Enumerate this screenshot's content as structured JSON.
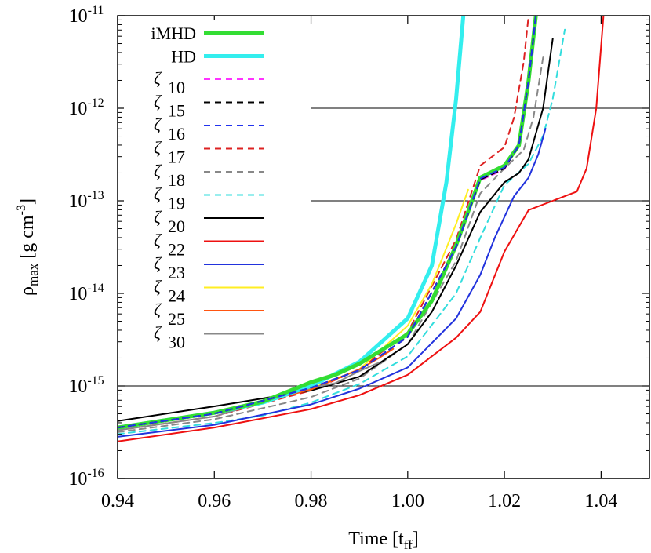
{
  "chart_data": {
    "type": "line",
    "xlabel": "Time [t",
    "xlabel_sub": "ff",
    "xlabel_end": "]",
    "ylabel_rho": "ρ",
    "ylabel_sub": "max",
    "ylabel_units": " [g cm",
    "ylabel_sup": "-3",
    "ylabel_end": "]",
    "xlim": [
      0.94,
      1.05
    ],
    "ylim_log10": [
      -16,
      -11
    ],
    "yscale": "log",
    "x_ticks": [
      {
        "value": 0.94,
        "label": "0.94"
      },
      {
        "value": 0.96,
        "label": "0.96"
      },
      {
        "value": 0.98,
        "label": "0.98"
      },
      {
        "value": 1.0,
        "label": "1.00"
      },
      {
        "value": 1.02,
        "label": "1.02"
      },
      {
        "value": 1.04,
        "label": "1.04"
      }
    ],
    "y_ticks": [
      {
        "exp": -16,
        "base": "10",
        "sup": "-16"
      },
      {
        "exp": -15,
        "base": "10",
        "sup": "-15"
      },
      {
        "exp": -14,
        "base": "10",
        "sup": "-14"
      },
      {
        "exp": -13,
        "base": "10",
        "sup": "-13"
      },
      {
        "exp": -12,
        "base": "10",
        "sup": "-12"
      },
      {
        "exp": -11,
        "base": "10",
        "sup": "-11"
      }
    ],
    "reference_lines": [
      {
        "y_log10": -15,
        "x_from": 0.94
      },
      {
        "y_log10": -13,
        "x_from": 0.98
      },
      {
        "y_log10": -12,
        "x_from": 0.98
      }
    ],
    "legend_position": "top-left",
    "series": [
      {
        "name": "iMHD",
        "color": "#33dd33",
        "width": 5,
        "dash": "",
        "points": [
          [
            0.94,
            -15.45
          ],
          [
            0.96,
            -15.29
          ],
          [
            0.97,
            -15.17
          ],
          [
            0.98,
            -14.96
          ],
          [
            0.985,
            -14.88
          ],
          [
            0.99,
            -14.76
          ],
          [
            1.0,
            -14.44
          ],
          [
            1.005,
            -14.08
          ],
          [
            1.01,
            -13.48
          ],
          [
            1.015,
            -12.75
          ],
          [
            1.02,
            -12.62
          ],
          [
            1.023,
            -12.4
          ],
          [
            1.025,
            -11.7
          ],
          [
            1.0265,
            -11.0
          ]
        ]
      },
      {
        "name": "HD",
        "color": "#33eeee",
        "width": 5,
        "dash": "",
        "points": [
          [
            0.94,
            -15.45
          ],
          [
            0.96,
            -15.29
          ],
          [
            0.97,
            -15.18
          ],
          [
            0.98,
            -15.0
          ],
          [
            0.99,
            -14.74
          ],
          [
            1.0,
            -14.27
          ],
          [
            1.005,
            -13.7
          ],
          [
            1.008,
            -12.8
          ],
          [
            1.01,
            -11.9
          ],
          [
            1.0115,
            -11.0
          ]
        ]
      },
      {
        "name": "10",
        "color": "#ff33ff",
        "width": 2,
        "dash": "8,6",
        "points": [
          [
            0.94,
            -15.45
          ],
          [
            0.96,
            -15.3
          ],
          [
            0.98,
            -15.02
          ],
          [
            0.99,
            -14.83
          ],
          [
            1.0,
            -14.47
          ],
          [
            1.01,
            -13.51
          ],
          [
            1.015,
            -12.78
          ],
          [
            1.02,
            -12.66
          ],
          [
            1.023,
            -12.4
          ],
          [
            1.025,
            -11.7
          ],
          [
            1.0265,
            -11.0
          ]
        ]
      },
      {
        "name": "15",
        "color": "#000000",
        "width": 2,
        "dash": "8,6",
        "points": [
          [
            0.94,
            -15.45
          ],
          [
            0.96,
            -15.3
          ],
          [
            0.98,
            -15.02
          ],
          [
            0.99,
            -14.83
          ],
          [
            1.0,
            -14.47
          ],
          [
            1.01,
            -13.5
          ],
          [
            1.015,
            -12.77
          ],
          [
            1.02,
            -12.65
          ],
          [
            1.023,
            -12.4
          ],
          [
            1.025,
            -11.7
          ],
          [
            1.0265,
            -11.0
          ]
        ]
      },
      {
        "name": "16",
        "color": "#2233ee",
        "width": 2,
        "dash": "8,6",
        "points": [
          [
            0.94,
            -15.45
          ],
          [
            0.96,
            -15.3
          ],
          [
            0.98,
            -15.02
          ],
          [
            0.99,
            -14.83
          ],
          [
            1.0,
            -14.47
          ],
          [
            1.01,
            -13.5
          ],
          [
            1.015,
            -12.76
          ],
          [
            1.02,
            -12.64
          ],
          [
            1.023,
            -12.4
          ],
          [
            1.025,
            -11.7
          ],
          [
            1.0265,
            -11.0
          ]
        ]
      },
      {
        "name": "17",
        "color": "#dd2222",
        "width": 2,
        "dash": "8,6",
        "points": [
          [
            0.94,
            -15.48
          ],
          [
            0.96,
            -15.33
          ],
          [
            0.98,
            -15.05
          ],
          [
            0.99,
            -14.82
          ],
          [
            1.0,
            -14.42
          ],
          [
            1.01,
            -13.42
          ],
          [
            1.015,
            -12.62
          ],
          [
            1.02,
            -12.42
          ],
          [
            1.022,
            -12.1
          ],
          [
            1.024,
            -11.5
          ],
          [
            1.025,
            -11.0
          ]
        ]
      },
      {
        "name": "18",
        "color": "#888888",
        "width": 2,
        "dash": "8,6",
        "points": [
          [
            0.94,
            -15.5
          ],
          [
            0.96,
            -15.36
          ],
          [
            0.98,
            -15.12
          ],
          [
            0.99,
            -14.92
          ],
          [
            1.0,
            -14.55
          ],
          [
            1.01,
            -13.65
          ],
          [
            1.015,
            -12.92
          ],
          [
            1.02,
            -12.65
          ],
          [
            1.024,
            -12.45
          ],
          [
            1.026,
            -12.1
          ],
          [
            1.028,
            -11.45
          ]
        ]
      },
      {
        "name": "19",
        "color": "#33dddd",
        "width": 2,
        "dash": "8,6",
        "points": [
          [
            0.94,
            -15.52
          ],
          [
            0.96,
            -15.4
          ],
          [
            0.97,
            -15.32
          ],
          [
            0.98,
            -15.18
          ],
          [
            0.99,
            -14.98
          ],
          [
            1.0,
            -14.68
          ],
          [
            1.01,
            -14.0
          ],
          [
            1.015,
            -13.4
          ],
          [
            1.02,
            -12.83
          ],
          [
            1.025,
            -12.6
          ],
          [
            1.028,
            -12.3
          ],
          [
            1.03,
            -11.9
          ],
          [
            1.0325,
            -11.15
          ]
        ]
      },
      {
        "name": "20",
        "color": "#000000",
        "width": 2,
        "dash": "",
        "points": [
          [
            0.94,
            -15.38
          ],
          [
            0.96,
            -15.22
          ],
          [
            0.98,
            -15.05
          ],
          [
            0.99,
            -14.9
          ],
          [
            1.0,
            -14.55
          ],
          [
            1.005,
            -14.2
          ],
          [
            1.01,
            -13.7
          ],
          [
            1.015,
            -13.12
          ],
          [
            1.02,
            -12.8
          ],
          [
            1.023,
            -12.7
          ],
          [
            1.025,
            -12.55
          ],
          [
            1.028,
            -12.0
          ],
          [
            1.03,
            -11.25
          ]
        ]
      },
      {
        "name": "22",
        "color": "#ee1111",
        "width": 2,
        "dash": "",
        "points": [
          [
            0.94,
            -15.6
          ],
          [
            0.96,
            -15.45
          ],
          [
            0.98,
            -15.25
          ],
          [
            0.99,
            -15.1
          ],
          [
            1.0,
            -14.88
          ],
          [
            1.01,
            -14.48
          ],
          [
            1.015,
            -14.2
          ],
          [
            1.02,
            -13.55
          ],
          [
            1.025,
            -13.1
          ],
          [
            1.03,
            -13.0
          ],
          [
            1.035,
            -12.9
          ],
          [
            1.037,
            -12.65
          ],
          [
            1.039,
            -12.0
          ],
          [
            1.0405,
            -11.0
          ]
        ]
      },
      {
        "name": "23",
        "color": "#2233dd",
        "width": 2,
        "dash": "",
        "points": [
          [
            0.94,
            -15.55
          ],
          [
            0.96,
            -15.42
          ],
          [
            0.98,
            -15.2
          ],
          [
            0.99,
            -15.03
          ],
          [
            1.0,
            -14.8
          ],
          [
            1.01,
            -14.27
          ],
          [
            1.015,
            -13.8
          ],
          [
            1.018,
            -13.4
          ],
          [
            1.022,
            -12.95
          ],
          [
            1.025,
            -12.75
          ],
          [
            1.027,
            -12.5
          ],
          [
            1.0285,
            -12.22
          ]
        ]
      },
      {
        "name": "24",
        "color": "#ffee22",
        "width": 2,
        "dash": "",
        "points": [
          [
            0.94,
            -15.45
          ],
          [
            0.96,
            -15.3
          ],
          [
            0.98,
            -15.03
          ],
          [
            0.99,
            -14.82
          ],
          [
            1.0,
            -14.35
          ],
          [
            1.005,
            -13.9
          ],
          [
            1.01,
            -13.25
          ],
          [
            1.0125,
            -12.88
          ]
        ]
      },
      {
        "name": "25",
        "color": "#ff5511",
        "width": 2,
        "dash": "",
        "points": [
          [
            0.94,
            -15.45
          ],
          [
            0.96,
            -15.3
          ],
          [
            0.98,
            -15.04
          ],
          [
            0.99,
            -14.82
          ],
          [
            0.994,
            -14.7
          ],
          [
            0.997,
            -14.6
          ]
        ]
      },
      {
        "name": "30",
        "color": "#888888",
        "width": 2,
        "dash": "",
        "points": [
          [
            0.94,
            -15.48
          ],
          [
            0.96,
            -15.33
          ],
          [
            0.98,
            -15.02
          ],
          [
            0.985,
            -14.97
          ],
          [
            0.99,
            -14.84
          ],
          [
            0.994,
            -14.75
          ]
        ]
      }
    ]
  }
}
